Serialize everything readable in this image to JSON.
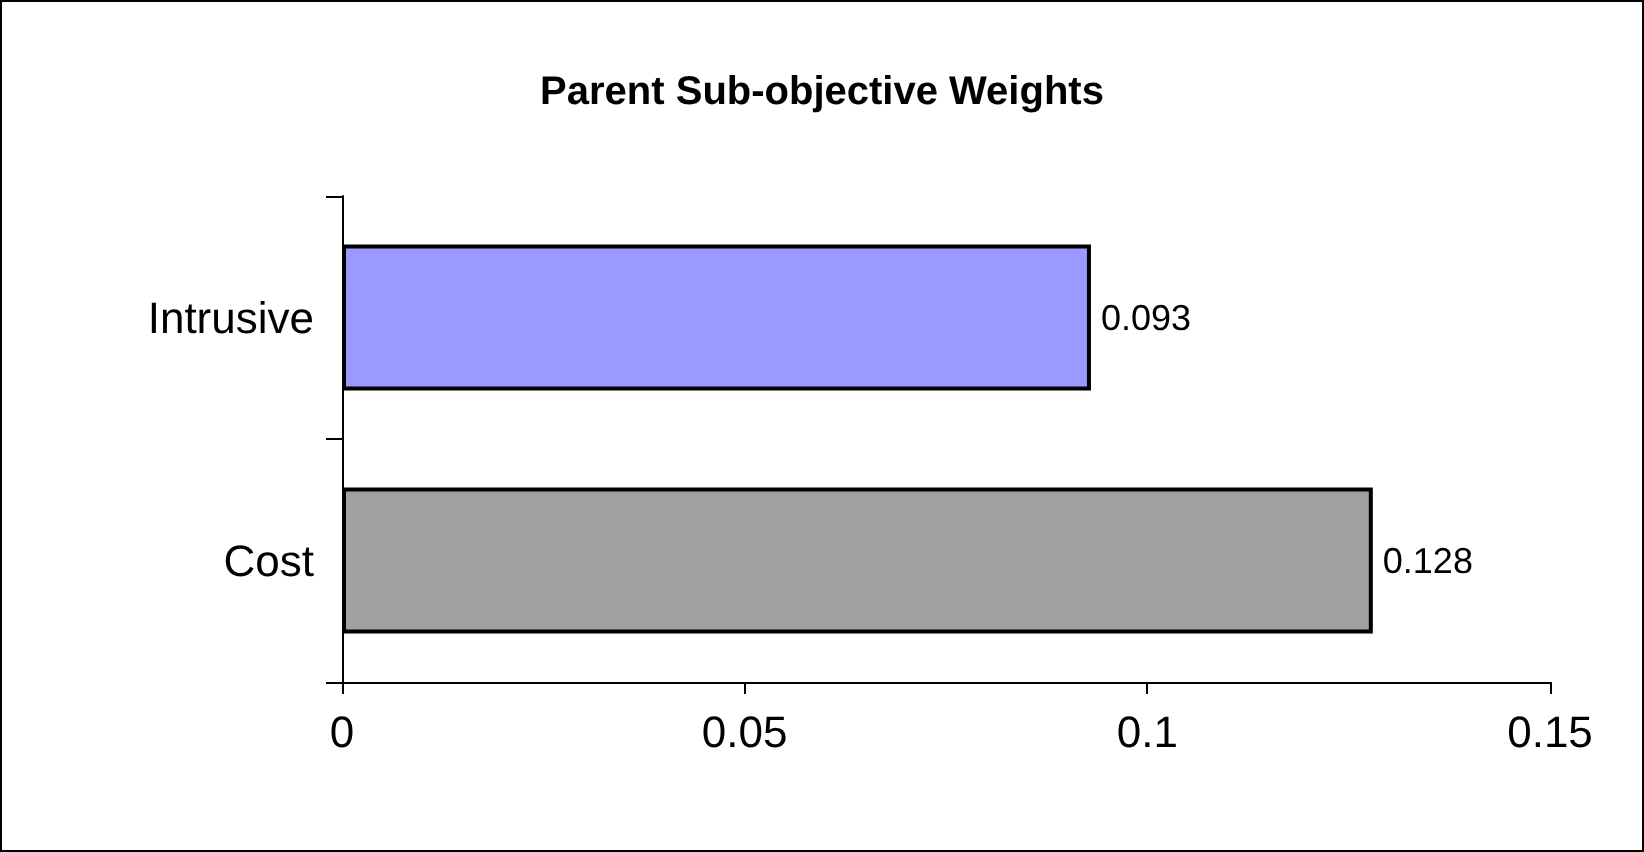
{
  "chart_data": {
    "type": "bar",
    "orientation": "horizontal",
    "title": "Parent Sub-objective Weights",
    "categories": [
      "Intrusive",
      "Cost"
    ],
    "values": [
      0.093,
      0.128
    ],
    "colors": [
      "#9999ff",
      "#a0a0a0"
    ],
    "xlim": [
      0,
      0.15
    ],
    "xticks": [
      0,
      0.05,
      0.1,
      0.15
    ],
    "data_labels": true,
    "grid": false
  }
}
